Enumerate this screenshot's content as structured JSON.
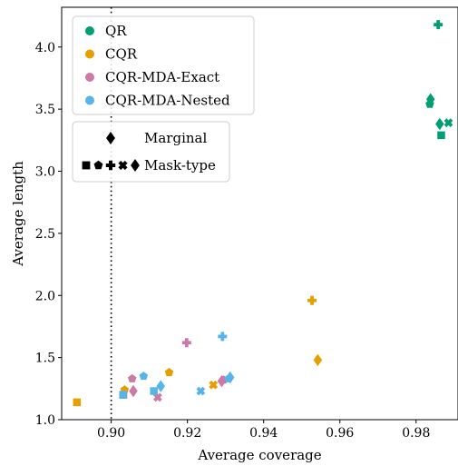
{
  "chart_data": {
    "type": "scatter",
    "xlabel": "Average coverage",
    "ylabel": "Average length",
    "xlim": [
      0.887,
      0.991
    ],
    "ylim": [
      1.0,
      4.32
    ],
    "xticks": [
      0.9,
      0.92,
      0.94,
      0.96,
      0.98
    ],
    "xtick_labels": [
      "0.90",
      "0.92",
      "0.94",
      "0.96",
      "0.98"
    ],
    "yticks": [
      1.0,
      1.5,
      2.0,
      2.5,
      3.0,
      3.5,
      4.0
    ],
    "ytick_labels": [
      "1.0",
      "1.5",
      "2.0",
      "2.5",
      "3.0",
      "3.5",
      "4.0"
    ],
    "reference_line": {
      "x": 0.9,
      "style": "dotted"
    },
    "grid": false,
    "legend_position": "top-left",
    "legend_methods": [
      {
        "label": "QR",
        "color": "#009E73"
      },
      {
        "label": "CQR",
        "color": "#E69F00"
      },
      {
        "label": "CQR-MDA-Exact",
        "color": "#CC79A7"
      },
      {
        "label": "CQR-MDA-Nested",
        "color": "#56B4E9"
      }
    ],
    "legend_types": [
      {
        "label": "Marginal",
        "markers": [
          "diamond"
        ]
      },
      {
        "label": "Mask-type",
        "markers": [
          "square",
          "pentagon",
          "plus",
          "x",
          "diamond"
        ]
      }
    ],
    "series": [
      {
        "name": "QR",
        "color": "#009E73",
        "points": [
          {
            "x": 0.9838,
            "y": 3.58,
            "marker": "diamond"
          },
          {
            "x": 0.9836,
            "y": 3.54,
            "marker": "pentagon"
          },
          {
            "x": 0.9858,
            "y": 4.18,
            "marker": "plus"
          },
          {
            "x": 0.9862,
            "y": 3.38,
            "marker": "diamond"
          },
          {
            "x": 0.9885,
            "y": 3.39,
            "marker": "x"
          },
          {
            "x": 0.9866,
            "y": 3.29,
            "marker": "square"
          }
        ]
      },
      {
        "name": "CQR",
        "color": "#E69F00",
        "points": [
          {
            "x": 0.891,
            "y": 1.14,
            "marker": "square"
          },
          {
            "x": 0.9035,
            "y": 1.24,
            "marker": "pentagon"
          },
          {
            "x": 0.9152,
            "y": 1.38,
            "marker": "pentagon"
          },
          {
            "x": 0.9268,
            "y": 1.28,
            "marker": "x"
          },
          {
            "x": 0.9527,
            "y": 1.96,
            "marker": "plus"
          },
          {
            "x": 0.9542,
            "y": 1.48,
            "marker": "diamond"
          }
        ]
      },
      {
        "name": "CQR-MDA-Exact",
        "color": "#CC79A7",
        "points": [
          {
            "x": 0.9032,
            "y": 1.2,
            "marker": "square"
          },
          {
            "x": 0.9055,
            "y": 1.33,
            "marker": "pentagon"
          },
          {
            "x": 0.9058,
            "y": 1.23,
            "marker": "diamond"
          },
          {
            "x": 0.9122,
            "y": 1.18,
            "marker": "x"
          },
          {
            "x": 0.9198,
            "y": 1.62,
            "marker": "plus"
          },
          {
            "x": 0.929,
            "y": 1.31,
            "marker": "diamond"
          },
          {
            "x": 0.9295,
            "y": 1.32,
            "marker": "pentagon"
          }
        ]
      },
      {
        "name": "CQR-MDA-Nested",
        "color": "#56B4E9",
        "points": [
          {
            "x": 0.9031,
            "y": 1.2,
            "marker": "square"
          },
          {
            "x": 0.9085,
            "y": 1.35,
            "marker": "pentagon"
          },
          {
            "x": 0.9112,
            "y": 1.23,
            "marker": "square"
          },
          {
            "x": 0.913,
            "y": 1.27,
            "marker": "diamond"
          },
          {
            "x": 0.9235,
            "y": 1.23,
            "marker": "x"
          },
          {
            "x": 0.9292,
            "y": 1.67,
            "marker": "plus"
          },
          {
            "x": 0.9308,
            "y": 1.33,
            "marker": "pentagon"
          },
          {
            "x": 0.9312,
            "y": 1.34,
            "marker": "diamond"
          }
        ]
      }
    ]
  }
}
